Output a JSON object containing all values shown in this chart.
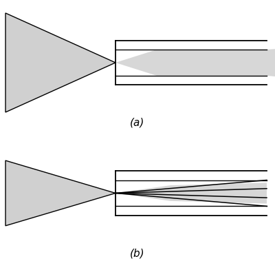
{
  "fig_width": 4.0,
  "fig_height": 3.79,
  "dpi": 100,
  "bg_color": "#ffffff",
  "gray_fill": "#d0d0d0",
  "line_color": "#000000",
  "label_a": "(a)",
  "label_b": "(b)"
}
